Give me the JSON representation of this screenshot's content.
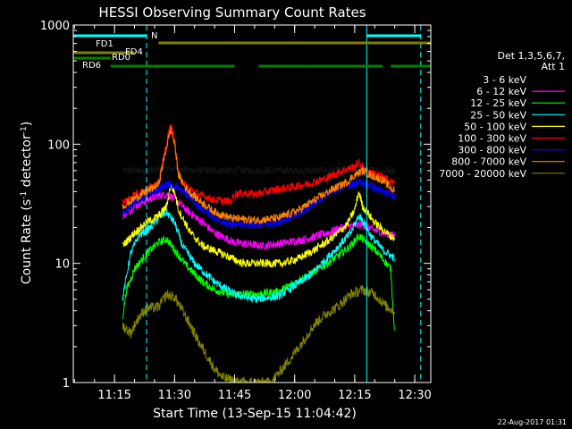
{
  "chart_data": {
    "type": "line",
    "title": "HESSI Observing Summary Count Rates",
    "xlabel": "Start Time (13-Sep-15 11:04:42)",
    "ylabel_main": "Count Rate (s",
    "ylabel_sup1": "-1",
    "ylabel_mid": " detector",
    "ylabel_sup2": "-1",
    "ylabel_end": ")",
    "footer_date": "22-Aug-2017 01:31",
    "x_unit": "minutes of day (UT)",
    "xlim": [
      664.7,
      754
    ],
    "ylim": [
      1,
      1000
    ],
    "yscale": "log",
    "x_ticks": [
      {
        "value": 675,
        "label": "11:15"
      },
      {
        "value": 690,
        "label": "11:30"
      },
      {
        "value": 705,
        "label": "11:45"
      },
      {
        "value": 720,
        "label": "12:00"
      },
      {
        "value": 735,
        "label": "12:15"
      },
      {
        "value": 750,
        "label": "12:30"
      }
    ],
    "y_ticks": [
      {
        "value": 1,
        "label": "1"
      },
      {
        "value": 10,
        "label": "10"
      },
      {
        "value": 100,
        "label": "100"
      },
      {
        "value": 1000,
        "label": "1000"
      }
    ],
    "legend": {
      "header1": "Det 1,3,5,6,7,",
      "header2": "Att 1",
      "placement": "right"
    },
    "data_window": [
      677,
      745
    ],
    "series": [
      {
        "name": "3 - 6 keV",
        "color": "#000000",
        "points": [
          [
            677,
            60
          ],
          [
            682,
            60
          ],
          [
            686,
            61
          ],
          [
            688,
            62
          ],
          [
            690,
            62
          ],
          [
            692,
            61
          ],
          [
            696,
            60
          ],
          [
            702,
            60
          ],
          [
            706,
            60
          ],
          [
            712,
            60
          ],
          [
            718,
            60
          ],
          [
            724,
            60
          ],
          [
            730,
            60
          ],
          [
            734,
            61
          ],
          [
            737,
            62
          ],
          [
            740,
            60
          ],
          [
            745,
            60
          ]
        ]
      },
      {
        "name": "6 - 12 keV",
        "color": "#ff00ff",
        "points": [
          [
            677,
            25
          ],
          [
            680,
            30
          ],
          [
            683,
            34
          ],
          [
            686,
            37
          ],
          [
            688,
            38
          ],
          [
            690,
            35
          ],
          [
            693,
            28
          ],
          [
            697,
            22
          ],
          [
            700,
            18
          ],
          [
            705,
            15
          ],
          [
            712,
            14
          ],
          [
            718,
            15
          ],
          [
            723,
            16
          ],
          [
            728,
            18
          ],
          [
            732,
            20
          ],
          [
            735,
            21
          ],
          [
            737,
            21
          ],
          [
            740,
            19
          ],
          [
            745,
            17
          ]
        ]
      },
      {
        "name": "12 - 25 keV",
        "color": "#00ff00",
        "points": [
          [
            677,
            3.5
          ],
          [
            678,
            6
          ],
          [
            680,
            9
          ],
          [
            683,
            12
          ],
          [
            686,
            15
          ],
          [
            688,
            16
          ],
          [
            690,
            13
          ],
          [
            693,
            9.5
          ],
          [
            697,
            7
          ],
          [
            700,
            6
          ],
          [
            704,
            5.5
          ],
          [
            710,
            5.5
          ],
          [
            716,
            5.8
          ],
          [
            721,
            7.2
          ],
          [
            726,
            9
          ],
          [
            730,
            11
          ],
          [
            734,
            14
          ],
          [
            736,
            17
          ],
          [
            738,
            15
          ],
          [
            741,
            12
          ],
          [
            744,
            9
          ],
          [
            745,
            2.5
          ]
        ]
      },
      {
        "name": "25 - 50 keV",
        "color": "#00ffff",
        "points": [
          [
            677,
            5
          ],
          [
            679,
            12
          ],
          [
            681,
            17
          ],
          [
            684,
            20
          ],
          [
            686,
            24
          ],
          [
            688,
            27
          ],
          [
            690,
            22
          ],
          [
            692,
            14
          ],
          [
            695,
            10
          ],
          [
            700,
            7
          ],
          [
            705,
            5.5
          ],
          [
            710,
            5
          ],
          [
            716,
            5.3
          ],
          [
            720,
            6.5
          ],
          [
            724,
            8
          ],
          [
            728,
            11
          ],
          [
            731,
            14
          ],
          [
            734,
            18
          ],
          [
            736,
            25
          ],
          [
            737,
            23
          ],
          [
            739,
            17
          ],
          [
            742,
            13
          ],
          [
            745,
            11
          ]
        ]
      },
      {
        "name": "50 - 100 keV",
        "color": "#ffff00",
        "points": [
          [
            677,
            14
          ],
          [
            680,
            18
          ],
          [
            683,
            22
          ],
          [
            686,
            25
          ],
          [
            688,
            30
          ],
          [
            689,
            45
          ],
          [
            690,
            40
          ],
          [
            691,
            28
          ],
          [
            694,
            18
          ],
          [
            697,
            14
          ],
          [
            702,
            12
          ],
          [
            707,
            10
          ],
          [
            712,
            10
          ],
          [
            717,
            10
          ],
          [
            721,
            11
          ],
          [
            725,
            13
          ],
          [
            729,
            16
          ],
          [
            733,
            21
          ],
          [
            735,
            28
          ],
          [
            736,
            40
          ],
          [
            737,
            30
          ],
          [
            740,
            22
          ],
          [
            743,
            18
          ],
          [
            745,
            16
          ]
        ]
      },
      {
        "name": "100 - 300 keV",
        "color": "#ff0000",
        "points": [
          [
            677,
            32
          ],
          [
            680,
            38
          ],
          [
            683,
            42
          ],
          [
            686,
            48
          ],
          [
            688,
            100
          ],
          [
            689,
            150
          ],
          [
            690,
            110
          ],
          [
            691,
            55
          ],
          [
            693,
            44
          ],
          [
            696,
            38
          ],
          [
            700,
            34
          ],
          [
            704,
            33
          ],
          [
            705,
            38
          ],
          [
            707,
            39
          ],
          [
            710,
            38
          ],
          [
            713,
            40
          ],
          [
            716,
            42
          ],
          [
            720,
            44
          ],
          [
            724,
            47
          ],
          [
            728,
            52
          ],
          [
            732,
            60
          ],
          [
            735,
            65
          ],
          [
            736,
            70
          ],
          [
            738,
            60
          ],
          [
            741,
            55
          ],
          [
            745,
            47
          ]
        ]
      },
      {
        "name": "300 - 800 keV",
        "color": "#0000ff",
        "points": [
          [
            677,
            26
          ],
          [
            680,
            32
          ],
          [
            683,
            38
          ],
          [
            686,
            42
          ],
          [
            688,
            46
          ],
          [
            690,
            45
          ],
          [
            693,
            38
          ],
          [
            696,
            30
          ],
          [
            700,
            24
          ],
          [
            704,
            21
          ],
          [
            710,
            21
          ],
          [
            716,
            22
          ],
          [
            721,
            26
          ],
          [
            725,
            32
          ],
          [
            729,
            40
          ],
          [
            733,
            45
          ],
          [
            736,
            48
          ],
          [
            739,
            45
          ],
          [
            742,
            40
          ],
          [
            745,
            37
          ]
        ]
      },
      {
        "name": "800 - 7000 keV",
        "color": "#ff8000",
        "points": [
          [
            677,
            30
          ],
          [
            680,
            35
          ],
          [
            683,
            40
          ],
          [
            686,
            46
          ],
          [
            688,
            95
          ],
          [
            689,
            135
          ],
          [
            690,
            100
          ],
          [
            691,
            55
          ],
          [
            693,
            42
          ],
          [
            696,
            34
          ],
          [
            700,
            27
          ],
          [
            704,
            24
          ],
          [
            710,
            23
          ],
          [
            716,
            24
          ],
          [
            721,
            28
          ],
          [
            725,
            34
          ],
          [
            729,
            41
          ],
          [
            733,
            48
          ],
          [
            735,
            55
          ],
          [
            737,
            60
          ],
          [
            739,
            55
          ],
          [
            742,
            50
          ],
          [
            745,
            40
          ]
        ]
      },
      {
        "name": "7000 - 20000 keV",
        "color": "#808000",
        "points": [
          [
            677,
            3
          ],
          [
            679,
            2.6
          ],
          [
            681,
            3.5
          ],
          [
            683,
            4.2
          ],
          [
            686,
            4.3
          ],
          [
            688,
            5.5
          ],
          [
            690,
            5.2
          ],
          [
            692,
            4
          ],
          [
            694,
            3
          ],
          [
            696,
            2.2
          ],
          [
            698,
            1.7
          ],
          [
            700,
            1.3
          ],
          [
            702,
            1.1
          ],
          [
            706,
            1
          ],
          [
            710,
            1
          ],
          [
            714,
            1
          ],
          [
            716,
            1.2
          ],
          [
            719,
            1.6
          ],
          [
            722,
            2.2
          ],
          [
            725,
            3.1
          ],
          [
            728,
            3.8
          ],
          [
            731,
            4.4
          ],
          [
            734,
            5.5
          ],
          [
            737,
            6
          ],
          [
            740,
            5.5
          ],
          [
            743,
            4.3
          ],
          [
            745,
            4
          ]
        ]
      }
    ],
    "vlines": [
      {
        "x": 738,
        "color": "#00ffff",
        "style": "solid"
      },
      {
        "x": 683,
        "color": "#00ffff",
        "style": "dashed"
      },
      {
        "x": 751.5,
        "color": "#00ffff",
        "style": "dashed"
      }
    ],
    "flag_bars": [
      {
        "label": "N",
        "color": "#00ffff",
        "segments": [
          [
            664.7,
            683
          ],
          [
            738,
            751.5
          ]
        ]
      },
      {
        "label": "FD1",
        "color": "#808000",
        "segments": [
          [
            686,
            754
          ]
        ]
      },
      {
        "label": "FD4",
        "color": "#808000",
        "segments": [
          [
            664.7,
            680
          ]
        ]
      },
      {
        "label": "RD0",
        "color": "#008000",
        "segments": [
          [
            664.7,
            674
          ]
        ]
      },
      {
        "label": "RD6",
        "color": "#008000",
        "segments": [
          [
            674,
            705
          ],
          [
            711,
            723
          ],
          [
            723,
            742
          ],
          [
            744,
            754
          ]
        ]
      }
    ]
  }
}
